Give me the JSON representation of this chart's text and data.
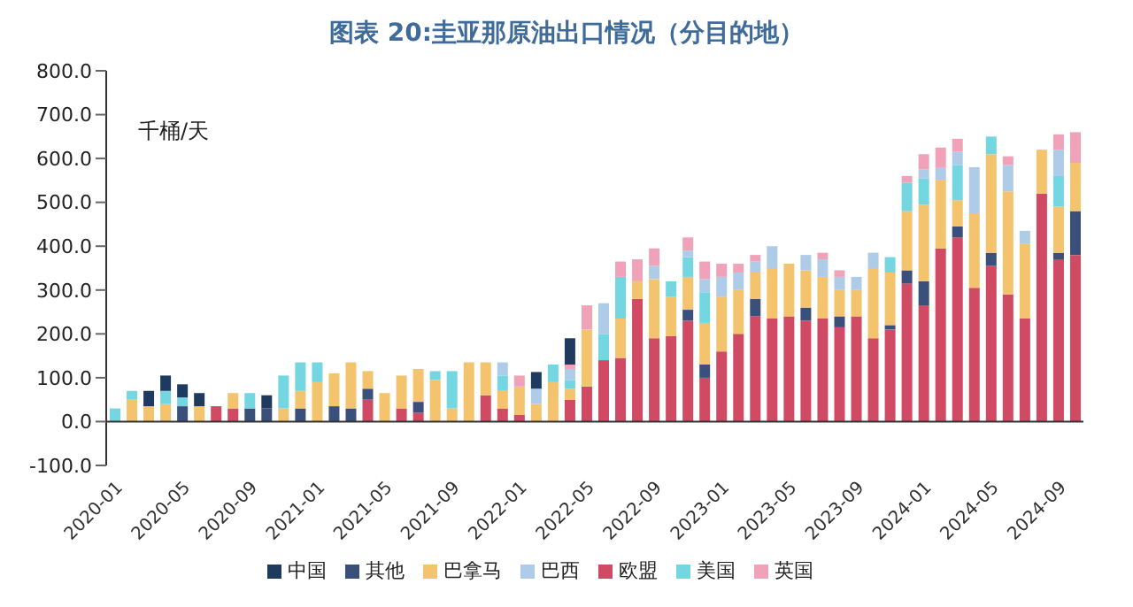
{
  "chart_data": {
    "type": "bar",
    "title": "图表  20:圭亚那原油出口情况（分目的地）",
    "ylabel": "千桶/天",
    "stacked": true,
    "legend": "bottom",
    "categories": [
      "2020-01",
      null,
      null,
      null,
      "2020-05",
      null,
      null,
      null,
      "2020-09",
      null,
      null,
      null,
      "2021-01",
      null,
      null,
      null,
      "2021-05",
      null,
      null,
      null,
      "2021-09",
      null,
      null,
      null,
      "2022-01",
      null,
      null,
      null,
      "2022-05",
      null,
      null,
      null,
      "2022-09",
      null,
      null,
      null,
      "2023-01",
      null,
      null,
      null,
      "2023-05",
      null,
      null,
      null,
      "2023-09",
      null,
      null,
      null,
      "2024-01",
      null,
      null,
      null,
      "2024-05",
      null,
      null,
      null,
      "2024-09",
      null
    ],
    "ylim": [
      -100,
      800
    ],
    "yticks": [
      {
        "value": -100,
        "label": "-100.0"
      },
      {
        "value": 0,
        "label": "0.0"
      },
      {
        "value": 100,
        "label": "100.0"
      },
      {
        "value": 200,
        "label": "200.0"
      },
      {
        "value": 300,
        "label": "300.0"
      },
      {
        "value": 400,
        "label": "400.0"
      },
      {
        "value": 500,
        "label": "500.0"
      },
      {
        "value": 600,
        "label": "600.0"
      },
      {
        "value": 700,
        "label": "700.0"
      },
      {
        "value": 800,
        "label": "800.0"
      }
    ],
    "series": [
      {
        "name": "欧盟",
        "color": "#d04a63",
        "values": [
          null,
          null,
          null,
          null,
          null,
          null,
          35,
          30,
          null,
          null,
          null,
          null,
          null,
          null,
          null,
          50,
          null,
          30,
          20,
          null,
          null,
          null,
          60,
          30,
          15,
          null,
          null,
          50,
          80,
          140,
          145,
          280,
          190,
          195,
          230,
          100,
          160,
          200,
          240,
          235,
          240,
          230,
          235,
          215,
          240,
          190,
          210,
          315,
          265,
          395,
          420,
          305,
          355,
          290,
          235,
          520,
          370,
          380
        ]
      },
      {
        "name": "其他",
        "color": "#3a4f7a",
        "values": [
          null,
          null,
          null,
          null,
          35,
          null,
          null,
          null,
          30,
          30,
          null,
          30,
          null,
          35,
          30,
          25,
          null,
          null,
          25,
          null,
          null,
          null,
          null,
          null,
          null,
          null,
          null,
          null,
          null,
          null,
          null,
          null,
          null,
          null,
          25,
          30,
          null,
          null,
          40,
          null,
          null,
          30,
          null,
          25,
          null,
          null,
          10,
          30,
          55,
          null,
          25,
          null,
          30,
          null,
          null,
          null,
          15,
          100
        ]
      },
      {
        "name": "巴拿马",
        "color": "#f4c36e",
        "values": [
          null,
          50,
          35,
          40,
          null,
          35,
          null,
          35,
          null,
          null,
          30,
          40,
          90,
          75,
          105,
          40,
          65,
          75,
          75,
          95,
          30,
          135,
          75,
          40,
          65,
          40,
          90,
          25,
          130,
          null,
          90,
          40,
          135,
          90,
          75,
          95,
          125,
          100,
          60,
          115,
          120,
          85,
          95,
          60,
          60,
          160,
          120,
          135,
          175,
          155,
          60,
          170,
          225,
          235,
          170,
          100,
          105,
          110
        ]
      },
      {
        "name": "美国",
        "color": "#74d6e0",
        "values": [
          30,
          20,
          null,
          30,
          20,
          null,
          null,
          null,
          35,
          null,
          75,
          65,
          45,
          null,
          null,
          null,
          null,
          null,
          null,
          20,
          85,
          null,
          null,
          35,
          null,
          null,
          40,
          20,
          null,
          60,
          95,
          null,
          null,
          35,
          45,
          70,
          null,
          null,
          null,
          null,
          null,
          null,
          null,
          null,
          null,
          null,
          35,
          65,
          60,
          null,
          80,
          null,
          40,
          null,
          null,
          null,
          70,
          null
        ]
      },
      {
        "name": "巴西",
        "color": "#aecbe8",
        "values": [
          null,
          null,
          null,
          null,
          null,
          null,
          null,
          null,
          null,
          null,
          null,
          null,
          null,
          null,
          null,
          null,
          null,
          null,
          null,
          null,
          null,
          null,
          null,
          30,
          null,
          35,
          null,
          25,
          null,
          70,
          null,
          null,
          30,
          null,
          15,
          30,
          45,
          40,
          25,
          50,
          null,
          35,
          40,
          30,
          30,
          35,
          null,
          null,
          20,
          30,
          30,
          105,
          null,
          60,
          30,
          null,
          60,
          null
        ]
      },
      {
        "name": "英国",
        "color": "#f0a3b8",
        "values": [
          null,
          null,
          null,
          null,
          null,
          null,
          null,
          null,
          null,
          null,
          null,
          null,
          null,
          null,
          null,
          null,
          null,
          null,
          null,
          null,
          null,
          null,
          null,
          null,
          25,
          null,
          null,
          10,
          55,
          null,
          35,
          50,
          40,
          null,
          30,
          40,
          30,
          20,
          15,
          null,
          null,
          null,
          15,
          15,
          null,
          null,
          null,
          15,
          35,
          45,
          30,
          null,
          null,
          20,
          null,
          null,
          35,
          70
        ]
      },
      {
        "name": "中国",
        "color": "#1f3a5f",
        "values": [
          null,
          null,
          35,
          35,
          30,
          30,
          null,
          null,
          null,
          30,
          null,
          null,
          null,
          null,
          null,
          null,
          null,
          null,
          null,
          null,
          null,
          null,
          null,
          null,
          null,
          38,
          null,
          60,
          null,
          null,
          null,
          null,
          null,
          null,
          null,
          null,
          null,
          null,
          null,
          null,
          null,
          null,
          null,
          null,
          null,
          null,
          null,
          null,
          null,
          null,
          null,
          null,
          null,
          null,
          null,
          null,
          null,
          null
        ]
      }
    ]
  }
}
